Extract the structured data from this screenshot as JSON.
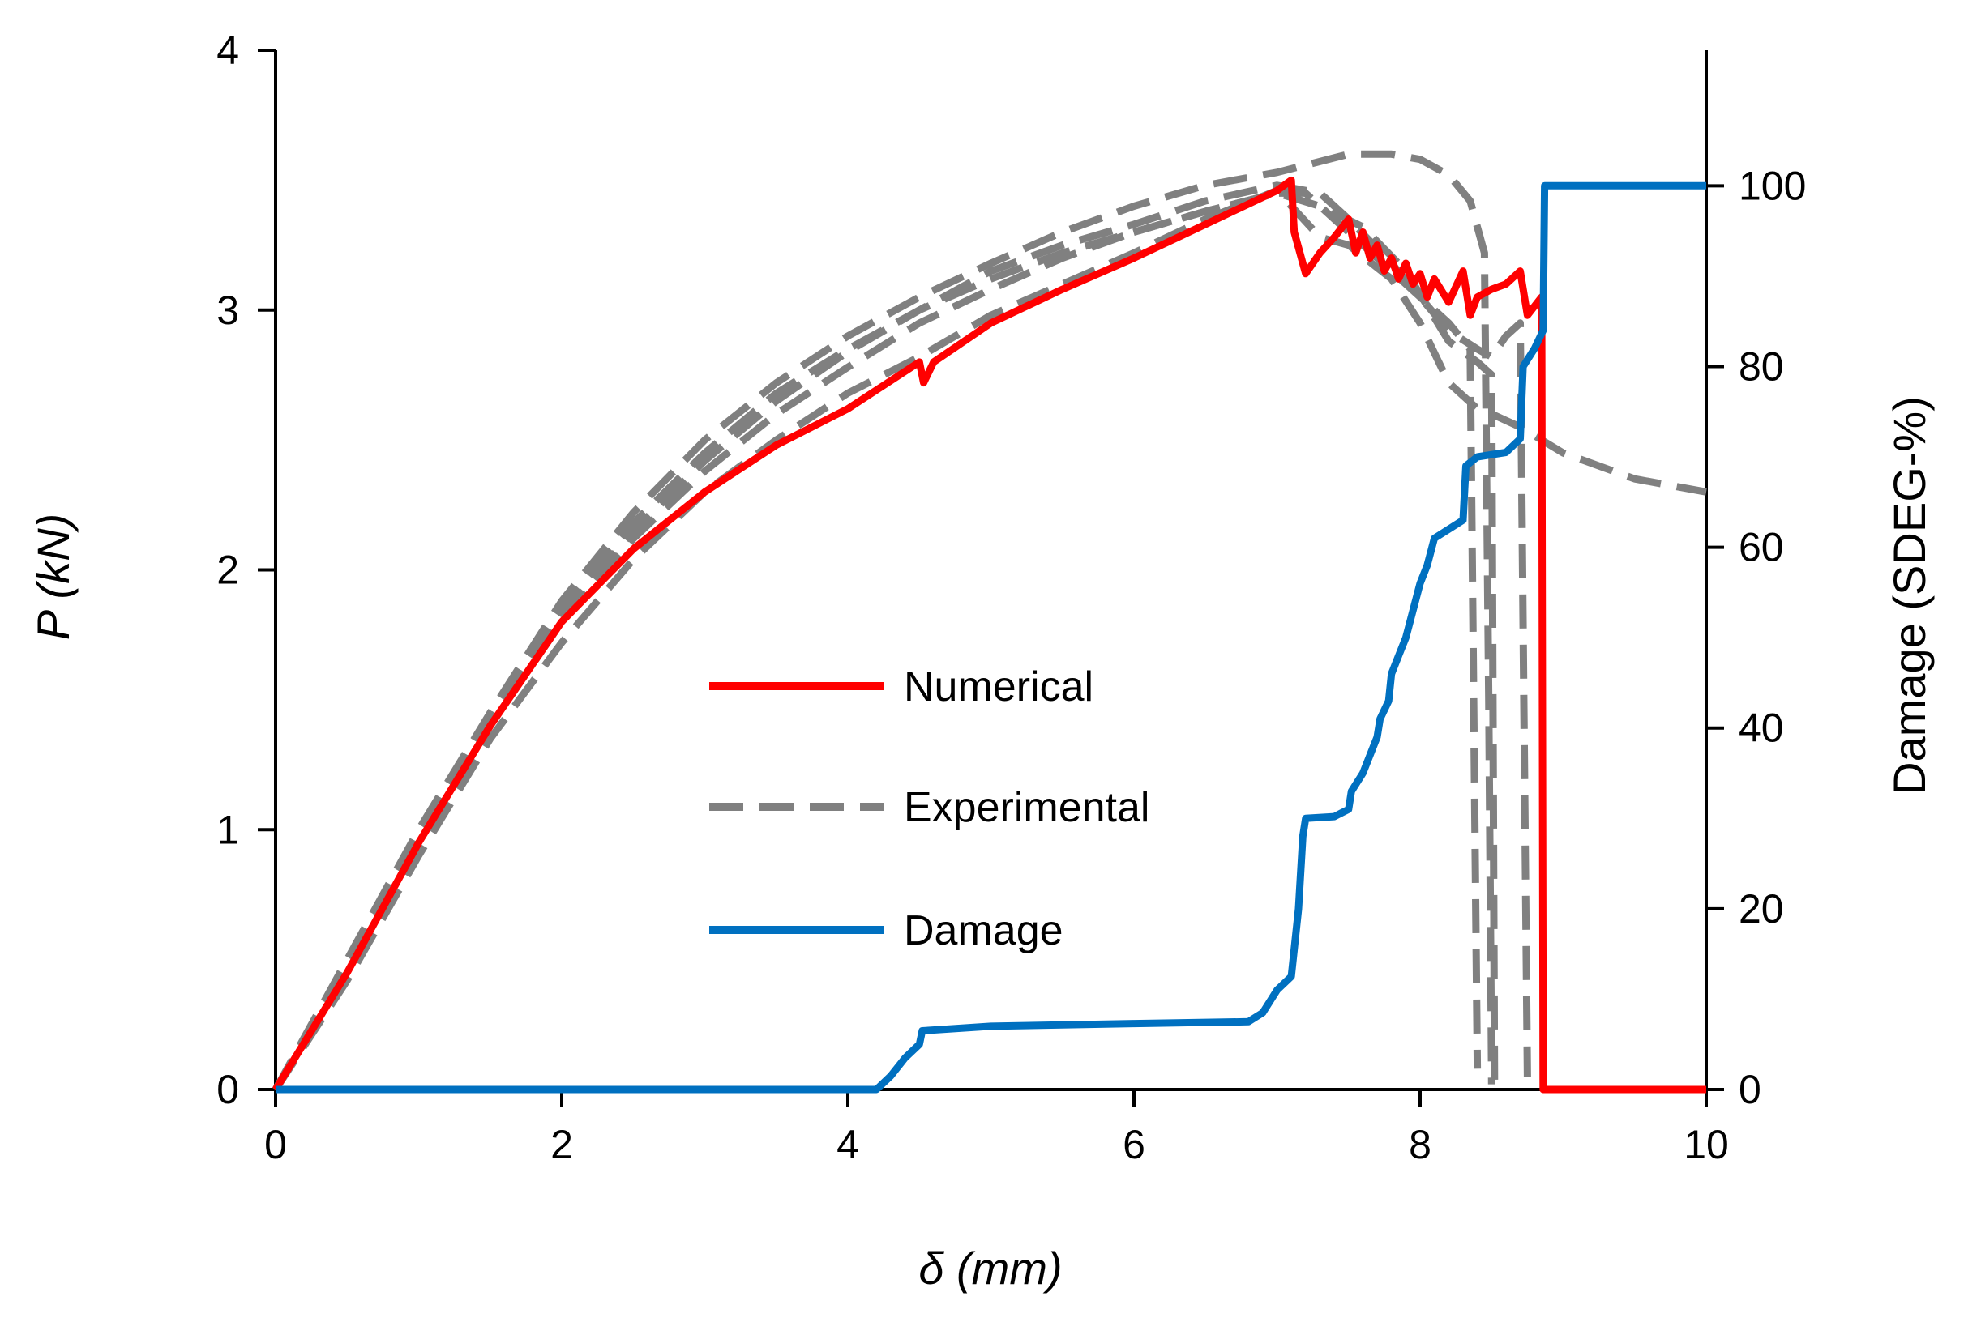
{
  "chart_data": {
    "type": "line",
    "xlabel": "δ (mm)",
    "ylabel": "P (kN)",
    "y2label": "Damage (SDEG-%)",
    "xlim": [
      0,
      10
    ],
    "ylim": [
      0,
      4
    ],
    "y2lim": [
      0,
      115
    ],
    "x_ticks": [
      "0",
      "2",
      "4",
      "6",
      "8",
      "10"
    ],
    "y_ticks": [
      "0",
      "1",
      "2",
      "3",
      "4"
    ],
    "y2_ticks": [
      "0",
      "20",
      "40",
      "60",
      "80",
      "100"
    ],
    "grid": false,
    "legend_position": "center",
    "series": [
      {
        "name": "Numerical",
        "axis": "left",
        "color": "#ff0000",
        "style": "solid",
        "points": [
          [
            0,
            0
          ],
          [
            0.5,
            0.45
          ],
          [
            1,
            0.95
          ],
          [
            1.5,
            1.4
          ],
          [
            2,
            1.8
          ],
          [
            2.5,
            2.08
          ],
          [
            3,
            2.3
          ],
          [
            3.5,
            2.48
          ],
          [
            4,
            2.62
          ],
          [
            4.5,
            2.8
          ],
          [
            4.53,
            2.72
          ],
          [
            4.6,
            2.8
          ],
          [
            5,
            2.95
          ],
          [
            5.5,
            3.08
          ],
          [
            6,
            3.2
          ],
          [
            6.5,
            3.33
          ],
          [
            7,
            3.46
          ],
          [
            7.1,
            3.5
          ],
          [
            7.12,
            3.3
          ],
          [
            7.2,
            3.14
          ],
          [
            7.3,
            3.22
          ],
          [
            7.4,
            3.28
          ],
          [
            7.5,
            3.35
          ],
          [
            7.55,
            3.22
          ],
          [
            7.6,
            3.3
          ],
          [
            7.65,
            3.2
          ],
          [
            7.7,
            3.25
          ],
          [
            7.75,
            3.15
          ],
          [
            7.8,
            3.2
          ],
          [
            7.85,
            3.12
          ],
          [
            7.9,
            3.18
          ],
          [
            7.95,
            3.1
          ],
          [
            8.0,
            3.14
          ],
          [
            8.05,
            3.05
          ],
          [
            8.1,
            3.12
          ],
          [
            8.2,
            3.03
          ],
          [
            8.3,
            3.15
          ],
          [
            8.35,
            2.98
          ],
          [
            8.4,
            3.05
          ],
          [
            8.5,
            3.08
          ],
          [
            8.6,
            3.1
          ],
          [
            8.7,
            3.15
          ],
          [
            8.75,
            2.98
          ],
          [
            8.85,
            3.05
          ],
          [
            8.86,
            0
          ],
          [
            10,
            0
          ]
        ]
      },
      {
        "name": "Experimental",
        "axis": "left",
        "color": "#808080",
        "style": "dashed",
        "curves": [
          [
            [
              0,
              0
            ],
            [
              0.5,
              0.5
            ],
            [
              1,
              1.0
            ],
            [
              1.5,
              1.45
            ],
            [
              2,
              1.85
            ],
            [
              2.5,
              2.18
            ],
            [
              3,
              2.45
            ],
            [
              3.5,
              2.68
            ],
            [
              4,
              2.85
            ],
            [
              4.5,
              3.0
            ],
            [
              5,
              3.15
            ],
            [
              5.5,
              3.25
            ],
            [
              6,
              3.33
            ],
            [
              6.5,
              3.42
            ],
            [
              7,
              3.48
            ],
            [
              7.3,
              3.45
            ],
            [
              7.5,
              3.35
            ],
            [
              7.8,
              3.18
            ],
            [
              8.0,
              3.05
            ],
            [
              8.2,
              2.92
            ],
            [
              8.4,
              2.85
            ],
            [
              8.5,
              2.82
            ],
            [
              8.6,
              2.9
            ],
            [
              8.7,
              2.95
            ],
            [
              8.75,
              0.05
            ]
          ],
          [
            [
              0,
              0
            ],
            [
              0.5,
              0.48
            ],
            [
              1,
              0.95
            ],
            [
              1.5,
              1.4
            ],
            [
              2,
              1.8
            ],
            [
              2.5,
              2.12
            ],
            [
              3,
              2.38
            ],
            [
              3.5,
              2.6
            ],
            [
              4,
              2.78
            ],
            [
              4.5,
              2.95
            ],
            [
              5,
              3.08
            ],
            [
              5.5,
              3.2
            ],
            [
              6,
              3.3
            ],
            [
              6.5,
              3.38
            ],
            [
              7,
              3.45
            ],
            [
              7.3,
              3.4
            ],
            [
              7.6,
              3.32
            ],
            [
              7.9,
              3.15
            ],
            [
              8.2,
              2.88
            ],
            [
              8.4,
              2.8
            ],
            [
              8.5,
              2.75
            ],
            [
              8.52,
              0.02
            ]
          ],
          [
            [
              0,
              0
            ],
            [
              0.5,
              0.42
            ],
            [
              1,
              0.9
            ],
            [
              1.5,
              1.35
            ],
            [
              2,
              1.72
            ],
            [
              2.5,
              2.04
            ],
            [
              3,
              2.3
            ],
            [
              3.5,
              2.5
            ],
            [
              4,
              2.68
            ],
            [
              4.5,
              2.82
            ],
            [
              5,
              2.98
            ],
            [
              5.5,
              3.1
            ],
            [
              6,
              3.22
            ],
            [
              6.5,
              3.35
            ],
            [
              7,
              3.46
            ],
            [
              7.3,
              3.28
            ],
            [
              7.5,
              3.25
            ],
            [
              7.8,
              3.12
            ],
            [
              8.0,
              2.95
            ],
            [
              8.2,
              2.72
            ],
            [
              8.4,
              2.62
            ],
            [
              8.5,
              2.6
            ],
            [
              8.7,
              2.55
            ],
            [
              9,
              2.45
            ],
            [
              9.5,
              2.35
            ],
            [
              10,
              2.3
            ]
          ],
          [
            [
              0,
              0
            ],
            [
              0.5,
              0.46
            ],
            [
              1,
              0.98
            ],
            [
              1.5,
              1.45
            ],
            [
              2,
              1.88
            ],
            [
              2.5,
              2.22
            ],
            [
              3,
              2.5
            ],
            [
              3.5,
              2.72
            ],
            [
              4,
              2.9
            ],
            [
              4.5,
              3.05
            ],
            [
              5,
              3.18
            ],
            [
              5.5,
              3.3
            ],
            [
              6,
              3.4
            ],
            [
              6.5,
              3.48
            ],
            [
              7,
              3.53
            ],
            [
              7.5,
              3.6
            ],
            [
              7.8,
              3.6
            ],
            [
              8.0,
              3.58
            ],
            [
              8.2,
              3.52
            ],
            [
              8.35,
              3.42
            ],
            [
              8.45,
              3.22
            ],
            [
              8.48,
              1.5
            ],
            [
              8.5,
              0.02
            ]
          ],
          [
            [
              0,
              0
            ],
            [
              0.5,
              0.45
            ],
            [
              1,
              0.96
            ],
            [
              1.5,
              1.42
            ],
            [
              2,
              1.82
            ],
            [
              2.5,
              2.15
            ],
            [
              3,
              2.42
            ],
            [
              3.5,
              2.65
            ],
            [
              4,
              2.84
            ],
            [
              4.5,
              3.0
            ],
            [
              5,
              3.12
            ],
            [
              5.5,
              3.22
            ],
            [
              6,
              3.3
            ],
            [
              6.5,
              3.38
            ],
            [
              7,
              3.45
            ],
            [
              7.2,
              3.45
            ],
            [
              7.4,
              3.35
            ],
            [
              7.6,
              3.25
            ],
            [
              7.8,
              3.15
            ],
            [
              8.0,
              3.05
            ],
            [
              8.2,
              2.95
            ],
            [
              8.35,
              2.85
            ],
            [
              8.4,
              0.08
            ]
          ]
        ]
      },
      {
        "name": "Damage",
        "axis": "right",
        "color": "#0070c0",
        "style": "solid",
        "points": [
          [
            0,
            0
          ],
          [
            4.2,
            0
          ],
          [
            4.3,
            1.5
          ],
          [
            4.4,
            3.5
          ],
          [
            4.5,
            5
          ],
          [
            4.52,
            6.5
          ],
          [
            5,
            7
          ],
          [
            6,
            7.3
          ],
          [
            6.8,
            7.5
          ],
          [
            6.9,
            8.5
          ],
          [
            7.0,
            11
          ],
          [
            7.1,
            12.5
          ],
          [
            7.15,
            20
          ],
          [
            7.18,
            28
          ],
          [
            7.2,
            30
          ],
          [
            7.4,
            30.2
          ],
          [
            7.5,
            31
          ],
          [
            7.52,
            33
          ],
          [
            7.6,
            35
          ],
          [
            7.65,
            37
          ],
          [
            7.7,
            39
          ],
          [
            7.72,
            41
          ],
          [
            7.78,
            43
          ],
          [
            7.8,
            46
          ],
          [
            7.85,
            48
          ],
          [
            7.9,
            50
          ],
          [
            7.95,
            53
          ],
          [
            8.0,
            56
          ],
          [
            8.05,
            58
          ],
          [
            8.1,
            61
          ],
          [
            8.2,
            62
          ],
          [
            8.3,
            63
          ],
          [
            8.32,
            69
          ],
          [
            8.4,
            70
          ],
          [
            8.6,
            70.5
          ],
          [
            8.7,
            72
          ],
          [
            8.72,
            80
          ],
          [
            8.8,
            82
          ],
          [
            8.86,
            84
          ],
          [
            8.87,
            100
          ],
          [
            10,
            100
          ]
        ]
      }
    ]
  }
}
